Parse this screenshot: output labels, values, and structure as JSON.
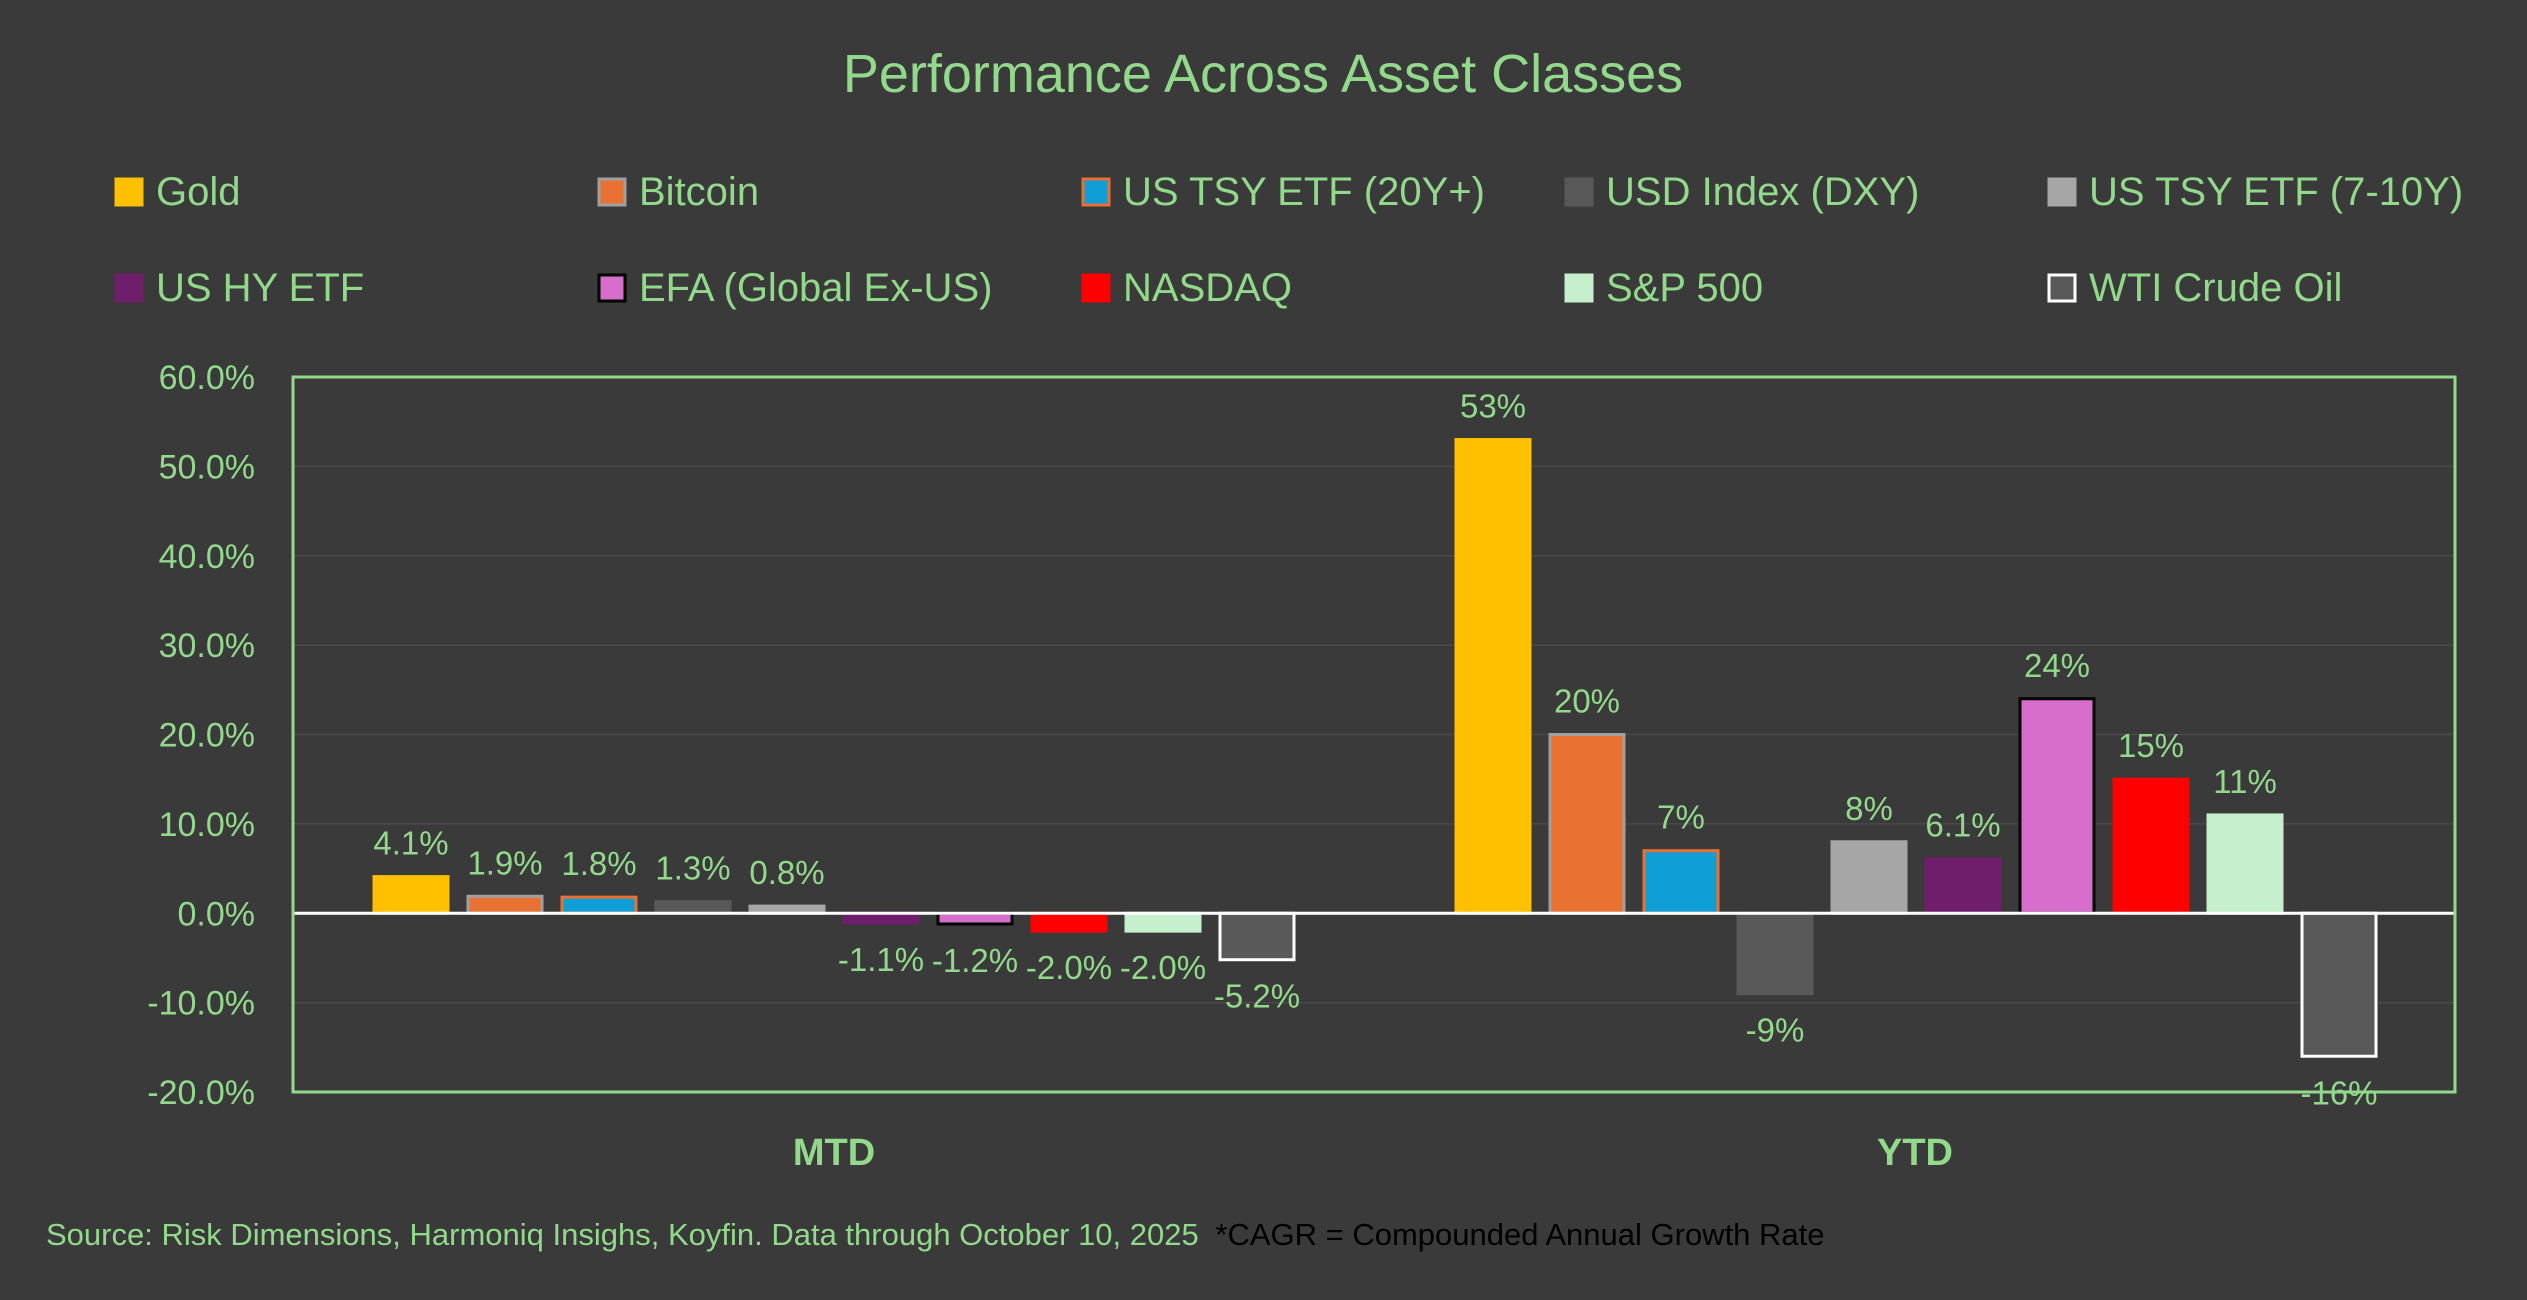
{
  "chart_data": {
    "type": "bar",
    "title": "Performance Across Asset Classes",
    "categories": [
      "MTD",
      "YTD"
    ],
    "ylim": [
      -20,
      60
    ],
    "ytick_values": [
      -20,
      -10,
      0,
      10,
      20,
      30,
      40,
      50,
      60
    ],
    "ytick_labels": [
      "-20.0%",
      "-10.0%",
      "0.0%",
      "10.0%",
      "20.0%",
      "30.0%",
      "40.0%",
      "50.0%",
      "60.0%"
    ],
    "grid": true,
    "legend_position": "top",
    "series": [
      {
        "name": "Gold",
        "color": "#FFC000",
        "edge": "#FFC000",
        "values": [
          4.1,
          53
        ],
        "labels": [
          "4.1%",
          "53%"
        ]
      },
      {
        "name": "Bitcoin",
        "color": "#E97132",
        "edge": "#A0A0A0",
        "values": [
          1.9,
          20
        ],
        "labels": [
          "1.9%",
          "20%"
        ]
      },
      {
        "name": "US TSY ETF (20Y+)",
        "color": "#0F9ED5",
        "edge": "#E97132",
        "values": [
          1.8,
          7
        ],
        "labels": [
          "1.8%",
          "7%"
        ]
      },
      {
        "name": "USD Index (DXY)",
        "color": "#595959",
        "edge": "#595959",
        "values": [
          1.3,
          -9
        ],
        "labels": [
          "1.3%",
          "-9%"
        ]
      },
      {
        "name": "US TSY ETF (7-10Y)",
        "color": "#A6A6A6",
        "edge": "#A6A6A6",
        "values": [
          0.8,
          8
        ],
        "labels": [
          "0.8%",
          "8%"
        ]
      },
      {
        "name": "US HY ETF",
        "color": "#6E1E6A",
        "edge": "#6E1E6A",
        "values": [
          -1.1,
          6.1
        ],
        "labels": [
          "-1.1%",
          "6.1%"
        ]
      },
      {
        "name": "EFA (Global Ex-US)",
        "color": "#D86ECC",
        "edge": "#000000",
        "values": [
          -1.2,
          24
        ],
        "labels": [
          "-1.2%",
          "24%"
        ]
      },
      {
        "name": "NASDAQ",
        "color": "#FF0000",
        "edge": "#FF0000",
        "values": [
          -2.0,
          15
        ],
        "labels": [
          "-2.0%",
          "15%"
        ]
      },
      {
        "name": "S&P 500",
        "color": "#C6EFCE",
        "edge": "#C6EFCE",
        "values": [
          -2.0,
          11
        ],
        "labels": [
          "-2.0%",
          "11%"
        ]
      },
      {
        "name": "WTI Crude Oil",
        "color": "#595959",
        "edge": "#FFFFFF",
        "values": [
          -5.2,
          -16
        ],
        "labels": [
          "-5.2%",
          "-16%"
        ]
      }
    ]
  },
  "footer": {
    "source_text": "Source: Risk Dimensions, Harmoniq Insighs, Koyfin. Data through October 10, 2025",
    "cagr_note": "*CAGR = Compounded Annual Growth Rate"
  },
  "colors": {
    "background": "#3a3a3a",
    "text_green": "#92D98C",
    "grid": "#4a4a4a",
    "frame": "#92D98C",
    "note_text": "#000000"
  }
}
